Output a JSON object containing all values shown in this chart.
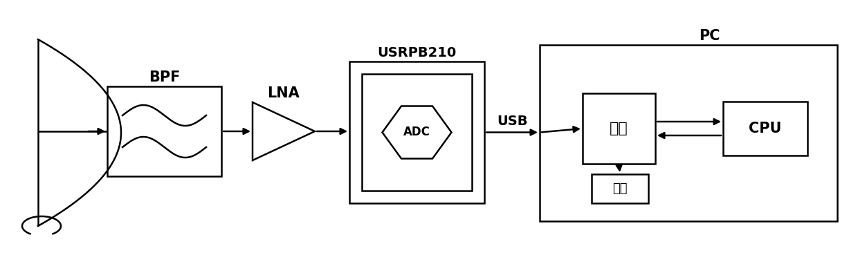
{
  "bg_color": "#ffffff",
  "line_color": "#000000",
  "text_color": "#000000",
  "figsize": [
    12.4,
    3.82
  ],
  "dpi": 100,
  "labels": {
    "BPF": "BPF",
    "LNA": "LNA",
    "USRPB210": "USRPB210",
    "ADC": "ADC",
    "USB": "USB",
    "PC": "PC",
    "memory": "内存",
    "CPU": "CPU",
    "disk": "硬盘"
  }
}
